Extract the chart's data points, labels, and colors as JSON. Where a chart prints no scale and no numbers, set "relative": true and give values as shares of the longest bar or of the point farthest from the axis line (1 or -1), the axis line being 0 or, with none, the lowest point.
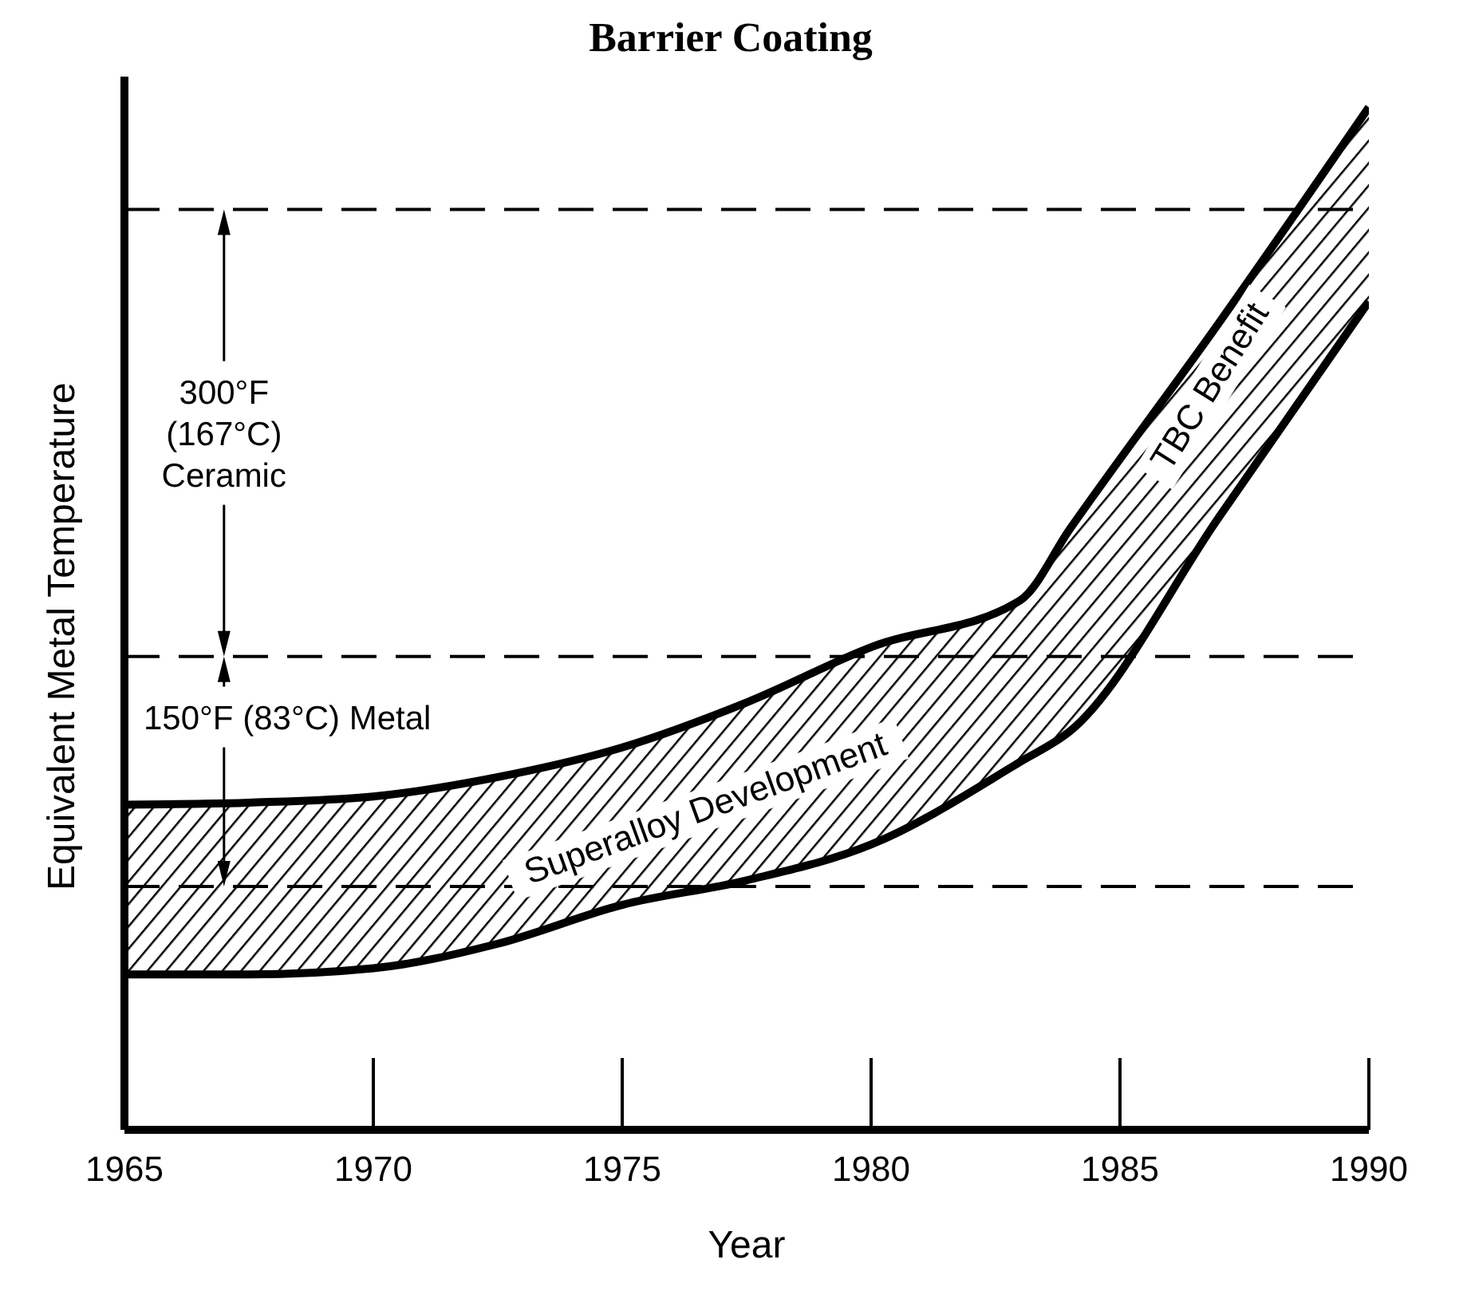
{
  "chart_data": {
    "type": "area",
    "title": "Barrier Coating",
    "xlabel": "Year",
    "ylabel": "Equivalent Metal Temperature",
    "relative": true,
    "x": [
      1965,
      1967.5,
      1970,
      1972.5,
      1975,
      1977.5,
      1980,
      1983,
      1984,
      1987,
      1990
    ],
    "xlim": [
      1965,
      1990
    ],
    "xticks": [
      1965,
      1970,
      1975,
      1980,
      1985,
      1990
    ],
    "series": [
      {
        "color": "#000000",
        "values": [
          0.318,
          0.32,
          0.326,
          0.345,
          0.374,
          0.418,
          0.472,
          0.518,
          0.588,
          0.79,
          1.0
        ]
      },
      {
        "color": "#000000",
        "values": [
          0.152,
          0.152,
          0.158,
          0.182,
          0.22,
          0.244,
          0.279,
          0.36,
          0.39,
          0.6,
          0.81
        ]
      }
    ],
    "line_style": "solid",
    "marker": "none",
    "ref_lines": [
      {
        "axis": "y",
        "value": 0.9,
        "line_style": "dashed",
        "color": "#000000"
      },
      {
        "axis": "y",
        "value": 0.463,
        "line_style": "dashed",
        "color": "#000000"
      },
      {
        "axis": "y",
        "value": 0.238,
        "line_style": "dashed",
        "color": "#000000"
      }
    ],
    "annotations": [
      "300°F\n(167°C)\nCeramic",
      "150°F (83°C) Metal",
      "Superalloy Development",
      "TBC Benefit"
    ]
  }
}
